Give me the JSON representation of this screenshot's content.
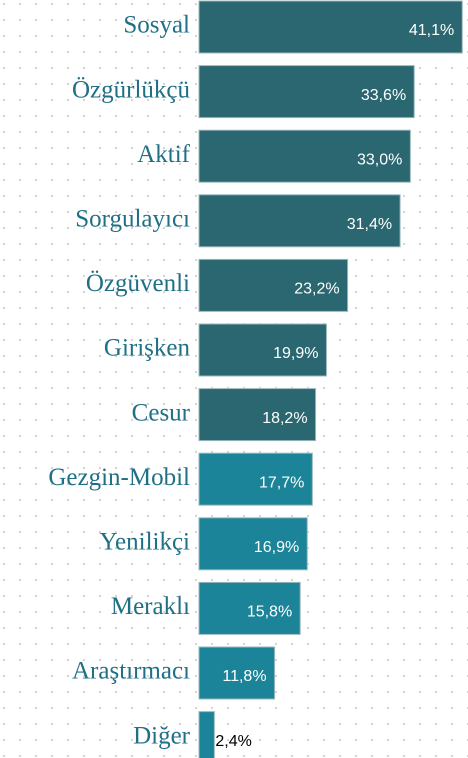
{
  "chart_data": {
    "type": "barh",
    "categories": [
      "Sosyal",
      "Özgürlükçü",
      "Aktif",
      "Sorgulayıcı",
      "Özgüvenli",
      "Girişken",
      "Cesur",
      "Gezgin-Mobil",
      "Yenilikçi",
      "Meraklı",
      "Araştırmacı",
      "Diğer"
    ],
    "values": [
      41.1,
      33.6,
      33.0,
      31.4,
      23.2,
      19.9,
      18.2,
      17.7,
      16.9,
      15.8,
      11.8,
      2.4
    ],
    "value_labels": [
      "41,1%",
      "33,6%",
      "33,0%",
      "31,4%",
      "23,2%",
      "19,9%",
      "18,2%",
      "17,7%",
      "16,9%",
      "15,8%",
      "11,8%",
      "2,4%"
    ],
    "colors": [
      "#2b6770",
      "#2b6770",
      "#2b6770",
      "#2b6770",
      "#2b6770",
      "#2b6770",
      "#2b6770",
      "#1c8498",
      "#1c8498",
      "#1c8498",
      "#1c8498",
      "#1c8498"
    ],
    "xlim": [
      0,
      42
    ]
  }
}
